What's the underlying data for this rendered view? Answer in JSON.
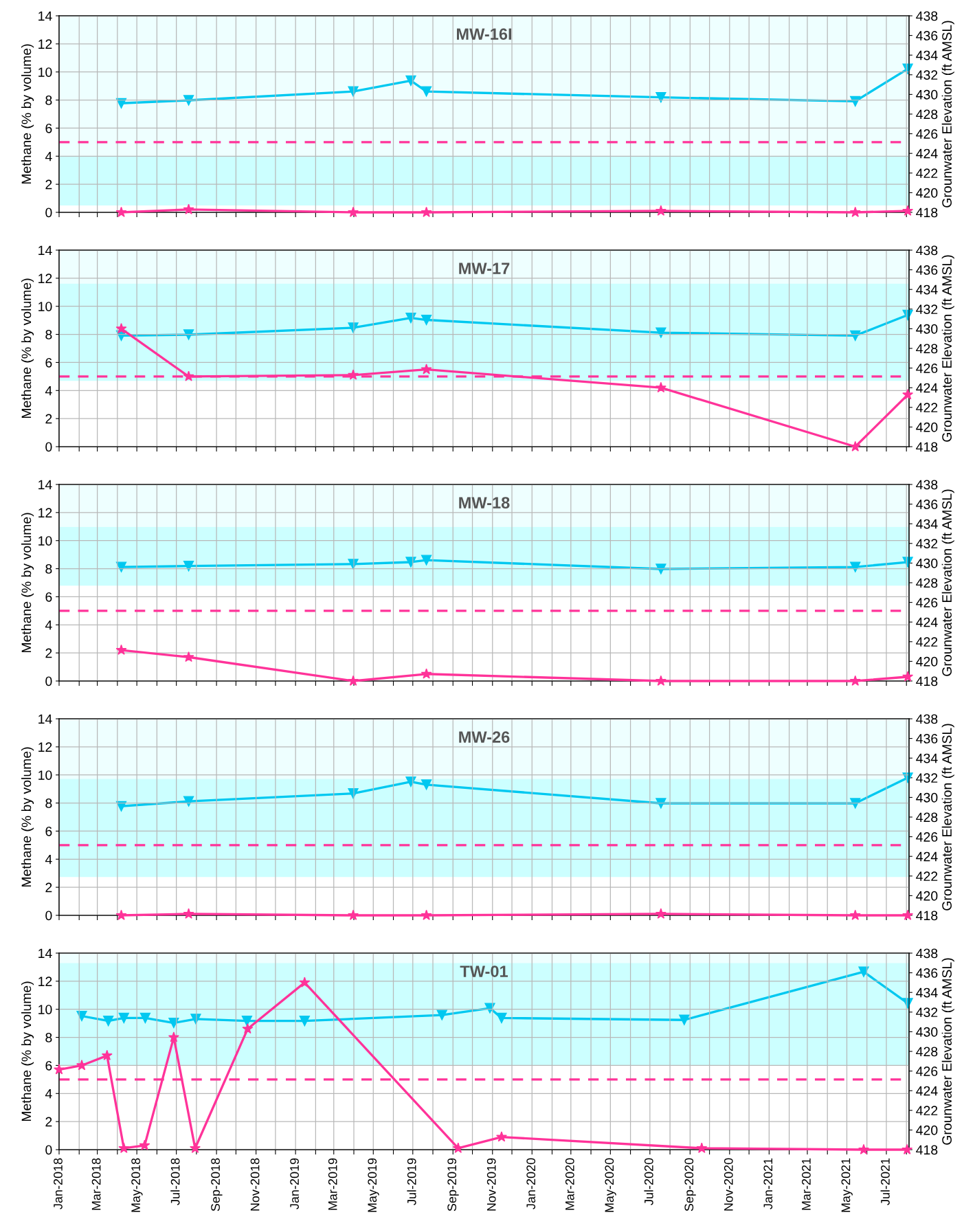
{
  "chart_data": [
    {
      "type": "line",
      "title": "MW-16I",
      "ylabel": "Methane (% by volume)",
      "y2label": "Grounwater Elevation (ft AMSL)",
      "xlim": [
        "2018-01-01",
        "2021-08-05"
      ],
      "ylim": [
        0,
        14
      ],
      "yticks": [
        0,
        2,
        4,
        6,
        8,
        10,
        12,
        14
      ],
      "y2lim": [
        418,
        438
      ],
      "y2ticks": [
        418,
        420,
        422,
        424,
        426,
        428,
        430,
        432,
        434,
        436,
        438
      ],
      "tick_labels": "y",
      "grid": true,
      "xticks": [
        {
          "value": "2018-01",
          "label": null
        },
        {
          "value": "2018-02",
          "label": null
        },
        {
          "value": "2018-03",
          "label": null
        },
        {
          "value": "2018-04",
          "label": null
        },
        {
          "value": "2018-05",
          "label": null
        },
        {
          "value": "2018-06",
          "label": null
        },
        {
          "value": "2018-07",
          "label": null
        },
        {
          "value": "2018-08",
          "label": null
        },
        {
          "value": "2018-09",
          "label": null
        },
        {
          "value": "2018-10",
          "label": null
        },
        {
          "value": "2018-11",
          "label": null
        },
        {
          "value": "2018-12",
          "label": null
        },
        {
          "value": "2019-01",
          "label": null
        },
        {
          "value": "2019-02",
          "label": null
        },
        {
          "value": "2019-03",
          "label": null
        },
        {
          "value": "2019-04",
          "label": null
        },
        {
          "value": "2019-05",
          "label": null
        },
        {
          "value": "2019-06",
          "label": null
        },
        {
          "value": "2019-07",
          "label": null
        },
        {
          "value": "2019-08",
          "label": null
        },
        {
          "value": "2019-09",
          "label": null
        },
        {
          "value": "2019-10",
          "label": null
        },
        {
          "value": "2019-11",
          "label": null
        },
        {
          "value": "2019-12",
          "label": null
        },
        {
          "value": "2020-01",
          "label": null
        },
        {
          "value": "2020-02",
          "label": null
        },
        {
          "value": "2020-03",
          "label": null
        },
        {
          "value": "2020-04",
          "label": null
        },
        {
          "value": "2020-05",
          "label": null
        },
        {
          "value": "2020-06",
          "label": null
        },
        {
          "value": "2020-07",
          "label": null
        },
        {
          "value": "2020-08",
          "label": null
        },
        {
          "value": "2020-09",
          "label": null
        },
        {
          "value": "2020-10",
          "label": null
        },
        {
          "value": "2020-11",
          "label": null
        },
        {
          "value": "2020-12",
          "label": null
        },
        {
          "value": "2021-01",
          "label": null
        },
        {
          "value": "2021-02",
          "label": null
        },
        {
          "value": "2021-03",
          "label": null
        },
        {
          "value": "2021-04",
          "label": null
        },
        {
          "value": "2021-05",
          "label": null
        },
        {
          "value": "2021-06",
          "label": null
        },
        {
          "value": "2021-07",
          "label": null
        },
        {
          "value": "2021-08",
          "label": null
        }
      ],
      "ref_lines": [
        {
          "axis": "y",
          "value": 5,
          "color": "#ff3399",
          "line_style": "dashed"
        }
      ],
      "bands": [
        {
          "axis": "y2",
          "from": 418.7,
          "to": 423.7,
          "color": "#ccffff"
        },
        {
          "axis": "y2",
          "from": 423.7,
          "to": 438,
          "color": "#eeffff"
        }
      ],
      "series": [
        {
          "color": "#00c8f0",
          "axis": "y2",
          "marker": "triangle",
          "x": [
            "2018-04-07",
            "2018-07-20",
            "2019-03-31",
            "2019-06-28",
            "2019-07-22",
            "2020-07-18",
            "2021-05-14",
            "2021-08-03"
          ],
          "values": [
            429.1,
            429.4,
            430.3,
            431.4,
            430.3,
            429.7,
            429.3,
            432.6
          ]
        },
        {
          "color": "#ff3399",
          "axis": "y",
          "marker": "star",
          "x": [
            "2018-04-07",
            "2018-07-20",
            "2019-03-31",
            "2019-07-22",
            "2020-07-18",
            "2021-05-14",
            "2021-08-03"
          ],
          "values": [
            0.0,
            0.2,
            0.0,
            0.0,
            0.1,
            0.0,
            0.1
          ]
        }
      ]
    },
    {
      "type": "line",
      "title": "MW-17",
      "ylabel": "Methane (% by volume)",
      "y2label": "Grounwater Elevation (ft AMSL)",
      "xlim": [
        "2018-01-01",
        "2021-08-05"
      ],
      "ylim": [
        0,
        14
      ],
      "yticks": [
        0,
        2,
        4,
        6,
        8,
        10,
        12,
        14
      ],
      "y2lim": [
        418,
        438
      ],
      "y2ticks": [
        418,
        420,
        422,
        424,
        426,
        428,
        430,
        432,
        434,
        436,
        438
      ],
      "tick_labels": "y",
      "grid": true,
      "xticks": [
        {
          "value": "2018-01",
          "label": null
        },
        {
          "value": "2018-02",
          "label": null
        },
        {
          "value": "2018-03",
          "label": null
        },
        {
          "value": "2018-04",
          "label": null
        },
        {
          "value": "2018-05",
          "label": null
        },
        {
          "value": "2018-06",
          "label": null
        },
        {
          "value": "2018-07",
          "label": null
        },
        {
          "value": "2018-08",
          "label": null
        },
        {
          "value": "2018-09",
          "label": null
        },
        {
          "value": "2018-10",
          "label": null
        },
        {
          "value": "2018-11",
          "label": null
        },
        {
          "value": "2018-12",
          "label": null
        },
        {
          "value": "2019-01",
          "label": null
        },
        {
          "value": "2019-02",
          "label": null
        },
        {
          "value": "2019-03",
          "label": null
        },
        {
          "value": "2019-04",
          "label": null
        },
        {
          "value": "2019-05",
          "label": null
        },
        {
          "value": "2019-06",
          "label": null
        },
        {
          "value": "2019-07",
          "label": null
        },
        {
          "value": "2019-08",
          "label": null
        },
        {
          "value": "2019-09",
          "label": null
        },
        {
          "value": "2019-10",
          "label": null
        },
        {
          "value": "2019-11",
          "label": null
        },
        {
          "value": "2019-12",
          "label": null
        },
        {
          "value": "2020-01",
          "label": null
        },
        {
          "value": "2020-02",
          "label": null
        },
        {
          "value": "2020-03",
          "label": null
        },
        {
          "value": "2020-04",
          "label": null
        },
        {
          "value": "2020-05",
          "label": null
        },
        {
          "value": "2020-06",
          "label": null
        },
        {
          "value": "2020-07",
          "label": null
        },
        {
          "value": "2020-08",
          "label": null
        },
        {
          "value": "2020-09",
          "label": null
        },
        {
          "value": "2020-10",
          "label": null
        },
        {
          "value": "2020-11",
          "label": null
        },
        {
          "value": "2020-12",
          "label": null
        },
        {
          "value": "2021-01",
          "label": null
        },
        {
          "value": "2021-02",
          "label": null
        },
        {
          "value": "2021-03",
          "label": null
        },
        {
          "value": "2021-04",
          "label": null
        },
        {
          "value": "2021-05",
          "label": null
        },
        {
          "value": "2021-06",
          "label": null
        },
        {
          "value": "2021-07",
          "label": null
        },
        {
          "value": "2021-08",
          "label": null
        }
      ],
      "ref_lines": [
        {
          "axis": "y",
          "value": 5,
          "color": "#ff3399",
          "line_style": "dashed"
        }
      ],
      "bands": [
        {
          "axis": "y2",
          "from": 424.7,
          "to": 434.6,
          "color": "#ccffff"
        },
        {
          "axis": "y2",
          "from": 434.6,
          "to": 438,
          "color": "#eeffff"
        }
      ],
      "series": [
        {
          "color": "#00c8f0",
          "axis": "y2",
          "marker": "triangle",
          "x": [
            "2018-04-07",
            "2018-07-20",
            "2019-03-31",
            "2019-06-28",
            "2019-07-22",
            "2020-07-18",
            "2021-05-14",
            "2021-08-03"
          ],
          "values": [
            429.3,
            429.4,
            430.1,
            431.1,
            430.9,
            429.6,
            429.3,
            431.4
          ]
        },
        {
          "color": "#ff3399",
          "axis": "y",
          "marker": "star",
          "x": [
            "2018-04-07",
            "2018-07-20",
            "2019-03-31",
            "2019-07-22",
            "2020-07-18",
            "2021-05-14",
            "2021-08-03"
          ],
          "values": [
            8.4,
            5.0,
            5.1,
            5.5,
            4.2,
            0.0,
            3.7
          ]
        }
      ]
    },
    {
      "type": "line",
      "title": "MW-18",
      "ylabel": "Methane (% by volume)",
      "y2label": "Grounwater Elevation (ft AMSL)",
      "xlim": [
        "2018-01-01",
        "2021-08-05"
      ],
      "ylim": [
        0,
        14
      ],
      "yticks": [
        0,
        2,
        4,
        6,
        8,
        10,
        12,
        14
      ],
      "y2lim": [
        418,
        438
      ],
      "y2ticks": [
        418,
        420,
        422,
        424,
        426,
        428,
        430,
        432,
        434,
        436,
        438
      ],
      "tick_labels": "y",
      "grid": true,
      "xticks": [
        {
          "value": "2018-01",
          "label": null
        },
        {
          "value": "2018-02",
          "label": null
        },
        {
          "value": "2018-03",
          "label": null
        },
        {
          "value": "2018-04",
          "label": null
        },
        {
          "value": "2018-05",
          "label": null
        },
        {
          "value": "2018-06",
          "label": null
        },
        {
          "value": "2018-07",
          "label": null
        },
        {
          "value": "2018-08",
          "label": null
        },
        {
          "value": "2018-09",
          "label": null
        },
        {
          "value": "2018-10",
          "label": null
        },
        {
          "value": "2018-11",
          "label": null
        },
        {
          "value": "2018-12",
          "label": null
        },
        {
          "value": "2019-01",
          "label": null
        },
        {
          "value": "2019-02",
          "label": null
        },
        {
          "value": "2019-03",
          "label": null
        },
        {
          "value": "2019-04",
          "label": null
        },
        {
          "value": "2019-05",
          "label": null
        },
        {
          "value": "2019-06",
          "label": null
        },
        {
          "value": "2019-07",
          "label": null
        },
        {
          "value": "2019-08",
          "label": null
        },
        {
          "value": "2019-09",
          "label": null
        },
        {
          "value": "2019-10",
          "label": null
        },
        {
          "value": "2019-11",
          "label": null
        },
        {
          "value": "2019-12",
          "label": null
        },
        {
          "value": "2020-01",
          "label": null
        },
        {
          "value": "2020-02",
          "label": null
        },
        {
          "value": "2020-03",
          "label": null
        },
        {
          "value": "2020-04",
          "label": null
        },
        {
          "value": "2020-05",
          "label": null
        },
        {
          "value": "2020-06",
          "label": null
        },
        {
          "value": "2020-07",
          "label": null
        },
        {
          "value": "2020-08",
          "label": null
        },
        {
          "value": "2020-09",
          "label": null
        },
        {
          "value": "2020-10",
          "label": null
        },
        {
          "value": "2020-11",
          "label": null
        },
        {
          "value": "2020-12",
          "label": null
        },
        {
          "value": "2021-01",
          "label": null
        },
        {
          "value": "2021-02",
          "label": null
        },
        {
          "value": "2021-03",
          "label": null
        },
        {
          "value": "2021-04",
          "label": null
        },
        {
          "value": "2021-05",
          "label": null
        },
        {
          "value": "2021-06",
          "label": null
        },
        {
          "value": "2021-07",
          "label": null
        },
        {
          "value": "2021-08",
          "label": null
        }
      ],
      "ref_lines": [
        {
          "axis": "y",
          "value": 5,
          "color": "#ff3399",
          "line_style": "dashed"
        }
      ],
      "bands": [
        {
          "axis": "y2",
          "from": 427.7,
          "to": 433.7,
          "color": "#ccffff"
        },
        {
          "axis": "y2",
          "from": 433.7,
          "to": 438,
          "color": "#eeffff"
        }
      ],
      "series": [
        {
          "color": "#00c8f0",
          "axis": "y2",
          "marker": "triangle",
          "x": [
            "2018-04-07",
            "2018-07-20",
            "2019-03-31",
            "2019-06-28",
            "2019-07-22",
            "2020-07-18",
            "2021-05-14",
            "2021-08-03"
          ],
          "values": [
            429.6,
            429.7,
            429.9,
            430.1,
            430.3,
            429.4,
            429.6,
            430.1
          ]
        },
        {
          "color": "#ff3399",
          "axis": "y",
          "marker": "star",
          "x": [
            "2018-04-07",
            "2018-07-20",
            "2019-03-31",
            "2019-07-22",
            "2020-07-18",
            "2021-05-14",
            "2021-08-03"
          ],
          "values": [
            2.2,
            1.7,
            0.0,
            0.5,
            0.0,
            0.0,
            0.3
          ]
        }
      ]
    },
    {
      "type": "line",
      "title": "MW-26",
      "ylabel": "Methane (% by volume)",
      "y2label": "Grounwater Elevation (ft AMSL)",
      "xlim": [
        "2018-01-01",
        "2021-08-05"
      ],
      "ylim": [
        0,
        14
      ],
      "yticks": [
        0,
        2,
        4,
        6,
        8,
        10,
        12,
        14
      ],
      "y2lim": [
        418,
        438
      ],
      "y2ticks": [
        418,
        420,
        422,
        424,
        426,
        428,
        430,
        432,
        434,
        436,
        438
      ],
      "tick_labels": "y",
      "grid": true,
      "xticks": [
        {
          "value": "2018-01",
          "label": null
        },
        {
          "value": "2018-02",
          "label": null
        },
        {
          "value": "2018-03",
          "label": null
        },
        {
          "value": "2018-04",
          "label": null
        },
        {
          "value": "2018-05",
          "label": null
        },
        {
          "value": "2018-06",
          "label": null
        },
        {
          "value": "2018-07",
          "label": null
        },
        {
          "value": "2018-08",
          "label": null
        },
        {
          "value": "2018-09",
          "label": null
        },
        {
          "value": "2018-10",
          "label": null
        },
        {
          "value": "2018-11",
          "label": null
        },
        {
          "value": "2018-12",
          "label": null
        },
        {
          "value": "2019-01",
          "label": null
        },
        {
          "value": "2019-02",
          "label": null
        },
        {
          "value": "2019-03",
          "label": null
        },
        {
          "value": "2019-04",
          "label": null
        },
        {
          "value": "2019-05",
          "label": null
        },
        {
          "value": "2019-06",
          "label": null
        },
        {
          "value": "2019-07",
          "label": null
        },
        {
          "value": "2019-08",
          "label": null
        },
        {
          "value": "2019-09",
          "label": null
        },
        {
          "value": "2019-10",
          "label": null
        },
        {
          "value": "2019-11",
          "label": null
        },
        {
          "value": "2019-12",
          "label": null
        },
        {
          "value": "2020-01",
          "label": null
        },
        {
          "value": "2020-02",
          "label": null
        },
        {
          "value": "2020-03",
          "label": null
        },
        {
          "value": "2020-04",
          "label": null
        },
        {
          "value": "2020-05",
          "label": null
        },
        {
          "value": "2020-06",
          "label": null
        },
        {
          "value": "2020-07",
          "label": null
        },
        {
          "value": "2020-08",
          "label": null
        },
        {
          "value": "2020-09",
          "label": null
        },
        {
          "value": "2020-10",
          "label": null
        },
        {
          "value": "2020-11",
          "label": null
        },
        {
          "value": "2020-12",
          "label": null
        },
        {
          "value": "2021-01",
          "label": null
        },
        {
          "value": "2021-02",
          "label": null
        },
        {
          "value": "2021-03",
          "label": null
        },
        {
          "value": "2021-04",
          "label": null
        },
        {
          "value": "2021-05",
          "label": null
        },
        {
          "value": "2021-06",
          "label": null
        },
        {
          "value": "2021-07",
          "label": null
        },
        {
          "value": "2021-08",
          "label": null
        }
      ],
      "ref_lines": [
        {
          "axis": "y",
          "value": 5,
          "color": "#ff3399",
          "line_style": "dashed"
        }
      ],
      "bands": [
        {
          "axis": "y2",
          "from": 421.9,
          "to": 431.9,
          "color": "#ccffff"
        },
        {
          "axis": "y2",
          "from": 431.9,
          "to": 438,
          "color": "#eeffff"
        }
      ],
      "series": [
        {
          "color": "#00c8f0",
          "axis": "y2",
          "marker": "triangle",
          "x": [
            "2018-04-07",
            "2018-07-20",
            "2019-03-31",
            "2019-06-28",
            "2019-07-22",
            "2020-07-18",
            "2021-05-14",
            "2021-08-03"
          ],
          "values": [
            429.1,
            429.6,
            430.4,
            431.6,
            431.3,
            429.4,
            429.4,
            432.0
          ]
        },
        {
          "color": "#ff3399",
          "axis": "y",
          "marker": "star",
          "x": [
            "2018-04-07",
            "2018-07-20",
            "2019-03-31",
            "2019-07-22",
            "2020-07-18",
            "2021-05-14",
            "2021-08-03"
          ],
          "values": [
            0.0,
            0.1,
            0.0,
            0.0,
            0.1,
            0.0,
            0.0
          ]
        }
      ]
    },
    {
      "type": "line",
      "title": "TW-01",
      "ylabel": "Methane (% by volume)",
      "y2label": "Grounwater Elevation (ft AMSL)",
      "xlim": [
        "2018-01-01",
        "2021-08-05"
      ],
      "ylim": [
        0,
        14
      ],
      "yticks": [
        0,
        2,
        4,
        6,
        8,
        10,
        12,
        14
      ],
      "y2lim": [
        418,
        438
      ],
      "y2ticks": [
        418,
        420,
        422,
        424,
        426,
        428,
        430,
        432,
        434,
        436,
        438
      ],
      "grid": true,
      "xticks": [
        {
          "value": "2018-01",
          "label": "Jan-2018"
        },
        {
          "value": "2018-02",
          "label": null
        },
        {
          "value": "2018-03",
          "label": "Mar-2018"
        },
        {
          "value": "2018-04",
          "label": null
        },
        {
          "value": "2018-05",
          "label": "May-2018"
        },
        {
          "value": "2018-06",
          "label": null
        },
        {
          "value": "2018-07",
          "label": "Jul-2018"
        },
        {
          "value": "2018-08",
          "label": null
        },
        {
          "value": "2018-09",
          "label": "Sep-2018"
        },
        {
          "value": "2018-10",
          "label": null
        },
        {
          "value": "2018-11",
          "label": "Nov-2018"
        },
        {
          "value": "2018-12",
          "label": null
        },
        {
          "value": "2019-01",
          "label": "Jan-2019"
        },
        {
          "value": "2019-02",
          "label": null
        },
        {
          "value": "2019-03",
          "label": "Mar-2019"
        },
        {
          "value": "2019-04",
          "label": null
        },
        {
          "value": "2019-05",
          "label": "May-2019"
        },
        {
          "value": "2019-06",
          "label": null
        },
        {
          "value": "2019-07",
          "label": "Jul-2019"
        },
        {
          "value": "2019-08",
          "label": null
        },
        {
          "value": "2019-09",
          "label": "Sep-2019"
        },
        {
          "value": "2019-10",
          "label": null
        },
        {
          "value": "2019-11",
          "label": "Nov-2019"
        },
        {
          "value": "2019-12",
          "label": null
        },
        {
          "value": "2020-01",
          "label": "Jan-2020"
        },
        {
          "value": "2020-02",
          "label": null
        },
        {
          "value": "2020-03",
          "label": "Mar-2020"
        },
        {
          "value": "2020-04",
          "label": null
        },
        {
          "value": "2020-05",
          "label": "May-2020"
        },
        {
          "value": "2020-06",
          "label": null
        },
        {
          "value": "2020-07",
          "label": "Jul-2020"
        },
        {
          "value": "2020-08",
          "label": null
        },
        {
          "value": "2020-09",
          "label": "Sep-2020"
        },
        {
          "value": "2020-10",
          "label": null
        },
        {
          "value": "2020-11",
          "label": "Nov-2020"
        },
        {
          "value": "2020-12",
          "label": null
        },
        {
          "value": "2021-01",
          "label": "Jan-2021"
        },
        {
          "value": "2021-02",
          "label": null
        },
        {
          "value": "2021-03",
          "label": "Mar-2021"
        },
        {
          "value": "2021-04",
          "label": null
        },
        {
          "value": "2021-05",
          "label": "May-2021"
        },
        {
          "value": "2021-06",
          "label": null
        },
        {
          "value": "2021-07",
          "label": "Jul-2021"
        },
        {
          "value": "2021-08",
          "label": null
        }
      ],
      "ref_lines": [
        {
          "axis": "y",
          "value": 5,
          "color": "#ff3399",
          "line_style": "dashed"
        }
      ],
      "bands": [
        {
          "axis": "y2",
          "from": 426.6,
          "to": 437.0,
          "color": "#ccffff"
        },
        {
          "axis": "y2",
          "from": 437.0,
          "to": 438,
          "color": "#eeffff"
        }
      ],
      "series": [
        {
          "color": "#00c8f0",
          "axis": "y2",
          "marker": "triangle",
          "x": [
            "2018-02-05",
            "2018-03-18",
            "2018-04-11",
            "2018-05-14",
            "2018-06-27",
            "2018-07-31",
            "2018-10-18",
            "2019-01-15",
            "2019-08-15",
            "2019-10-28",
            "2019-11-15",
            "2020-08-23",
            "2021-05-27",
            "2021-08-03"
          ],
          "values": [
            431.6,
            431.1,
            431.4,
            431.4,
            430.9,
            431.3,
            431.1,
            431.1,
            431.7,
            432.4,
            431.4,
            431.2,
            436.1,
            432.9
          ]
        },
        {
          "color": "#ff3399",
          "axis": "y",
          "marker": "star",
          "x": [
            "2018-01-01",
            "2018-02-05",
            "2018-03-16",
            "2018-04-11",
            "2018-05-13",
            "2018-06-27",
            "2018-07-30",
            "2018-10-19",
            "2019-01-15",
            "2019-09-09",
            "2019-11-15",
            "2020-09-19",
            "2021-05-27",
            "2021-08-02"
          ],
          "values": [
            5.7,
            6.0,
            6.7,
            0.1,
            0.3,
            8.0,
            0.1,
            8.6,
            11.9,
            0.1,
            0.9,
            0.1,
            0.0,
            0.0
          ]
        }
      ]
    }
  ]
}
